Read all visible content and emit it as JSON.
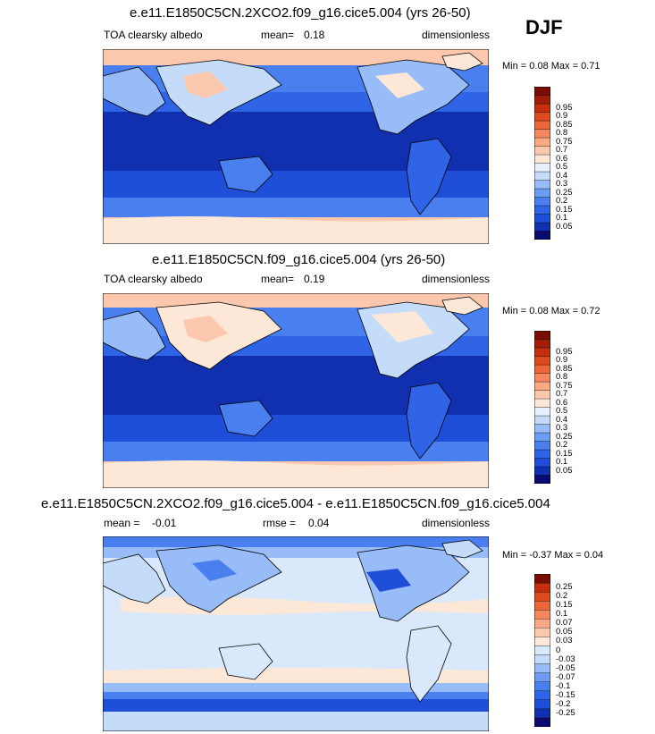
{
  "season": "DJF",
  "panels": [
    {
      "title": "e.e11.E1850C5CN.2XCO2.f09_g16.cice5.004 (yrs 26-50)",
      "variable": "TOA clearsky albedo",
      "stat_label": "mean=",
      "stat_value": "0.18",
      "units": "dimensionless",
      "min_label": "Min =",
      "min_value": "0.08",
      "max_label": "Max =",
      "max_value": "0.71",
      "colorbar": {
        "colors": [
          "#0a0a70",
          "#1030b0",
          "#1f4ed8",
          "#2f64e6",
          "#4a7ff0",
          "#6d9cf4",
          "#97bcf7",
          "#c4dcfa",
          "#e6f0fc",
          "#fde8d8",
          "#fbc8ae",
          "#f9a884",
          "#f4875d",
          "#eb6638",
          "#dc4a1e",
          "#c4300e",
          "#a01d08",
          "#7a0e04"
        ],
        "labels": [
          "0.05",
          "0.1",
          "0.15",
          "0.2",
          "0.25",
          "0.3",
          "0.4",
          "0.5",
          "0.6",
          "0.7",
          "0.75",
          "0.8",
          "0.85",
          "0.9",
          "0.95"
        ]
      }
    },
    {
      "title": "e.e11.E1850C5CN.f09_g16.cice5.004 (yrs 26-50)",
      "variable": "TOA clearsky albedo",
      "stat_label": "mean=",
      "stat_value": "0.19",
      "units": "dimensionless",
      "min_label": "Min =",
      "min_value": "0.08",
      "max_label": "Max =",
      "max_value": "0.72",
      "colorbar": {
        "colors": [
          "#0a0a70",
          "#1030b0",
          "#1f4ed8",
          "#2f64e6",
          "#4a7ff0",
          "#6d9cf4",
          "#97bcf7",
          "#c4dcfa",
          "#e6f0fc",
          "#fde8d8",
          "#fbc8ae",
          "#f9a884",
          "#f4875d",
          "#eb6638",
          "#dc4a1e",
          "#c4300e",
          "#a01d08",
          "#7a0e04"
        ],
        "labels": [
          "0.05",
          "0.1",
          "0.15",
          "0.2",
          "0.25",
          "0.3",
          "0.4",
          "0.5",
          "0.6",
          "0.7",
          "0.75",
          "0.8",
          "0.85",
          "0.9",
          "0.95"
        ]
      }
    },
    {
      "title": "e.e11.E1850C5CN.2XCO2.f09_g16.cice5.004 - e.e11.E1850C5CN.f09_g16.cice5.004",
      "stat_label": "mean =",
      "stat_value": "-0.01",
      "stat2_label": "rmse =",
      "stat2_value": "0.04",
      "units": "dimensionless",
      "min_label": "Min =",
      "min_value": "-0.37",
      "max_label": "Max =",
      "max_value": "0.04",
      "colorbar": {
        "colors": [
          "#0a0a70",
          "#1030b0",
          "#1f4ed8",
          "#2f64e6",
          "#4a7ff0",
          "#6d9cf4",
          "#97bcf7",
          "#c4dcfa",
          "#d9e8fb",
          "#fde8d8",
          "#fbc8ae",
          "#f9a884",
          "#f4875d",
          "#eb6638",
          "#dc4a1e",
          "#c4300e",
          "#7a0e04"
        ],
        "labels": [
          "-0.25",
          "-0.2",
          "-0.15",
          "-0.1",
          "-0.07",
          "-0.05",
          "-0.03",
          "0",
          "0.03",
          "0.05",
          "0.07",
          "0.1",
          "0.15",
          "0.2",
          "0.25"
        ]
      }
    }
  ]
}
